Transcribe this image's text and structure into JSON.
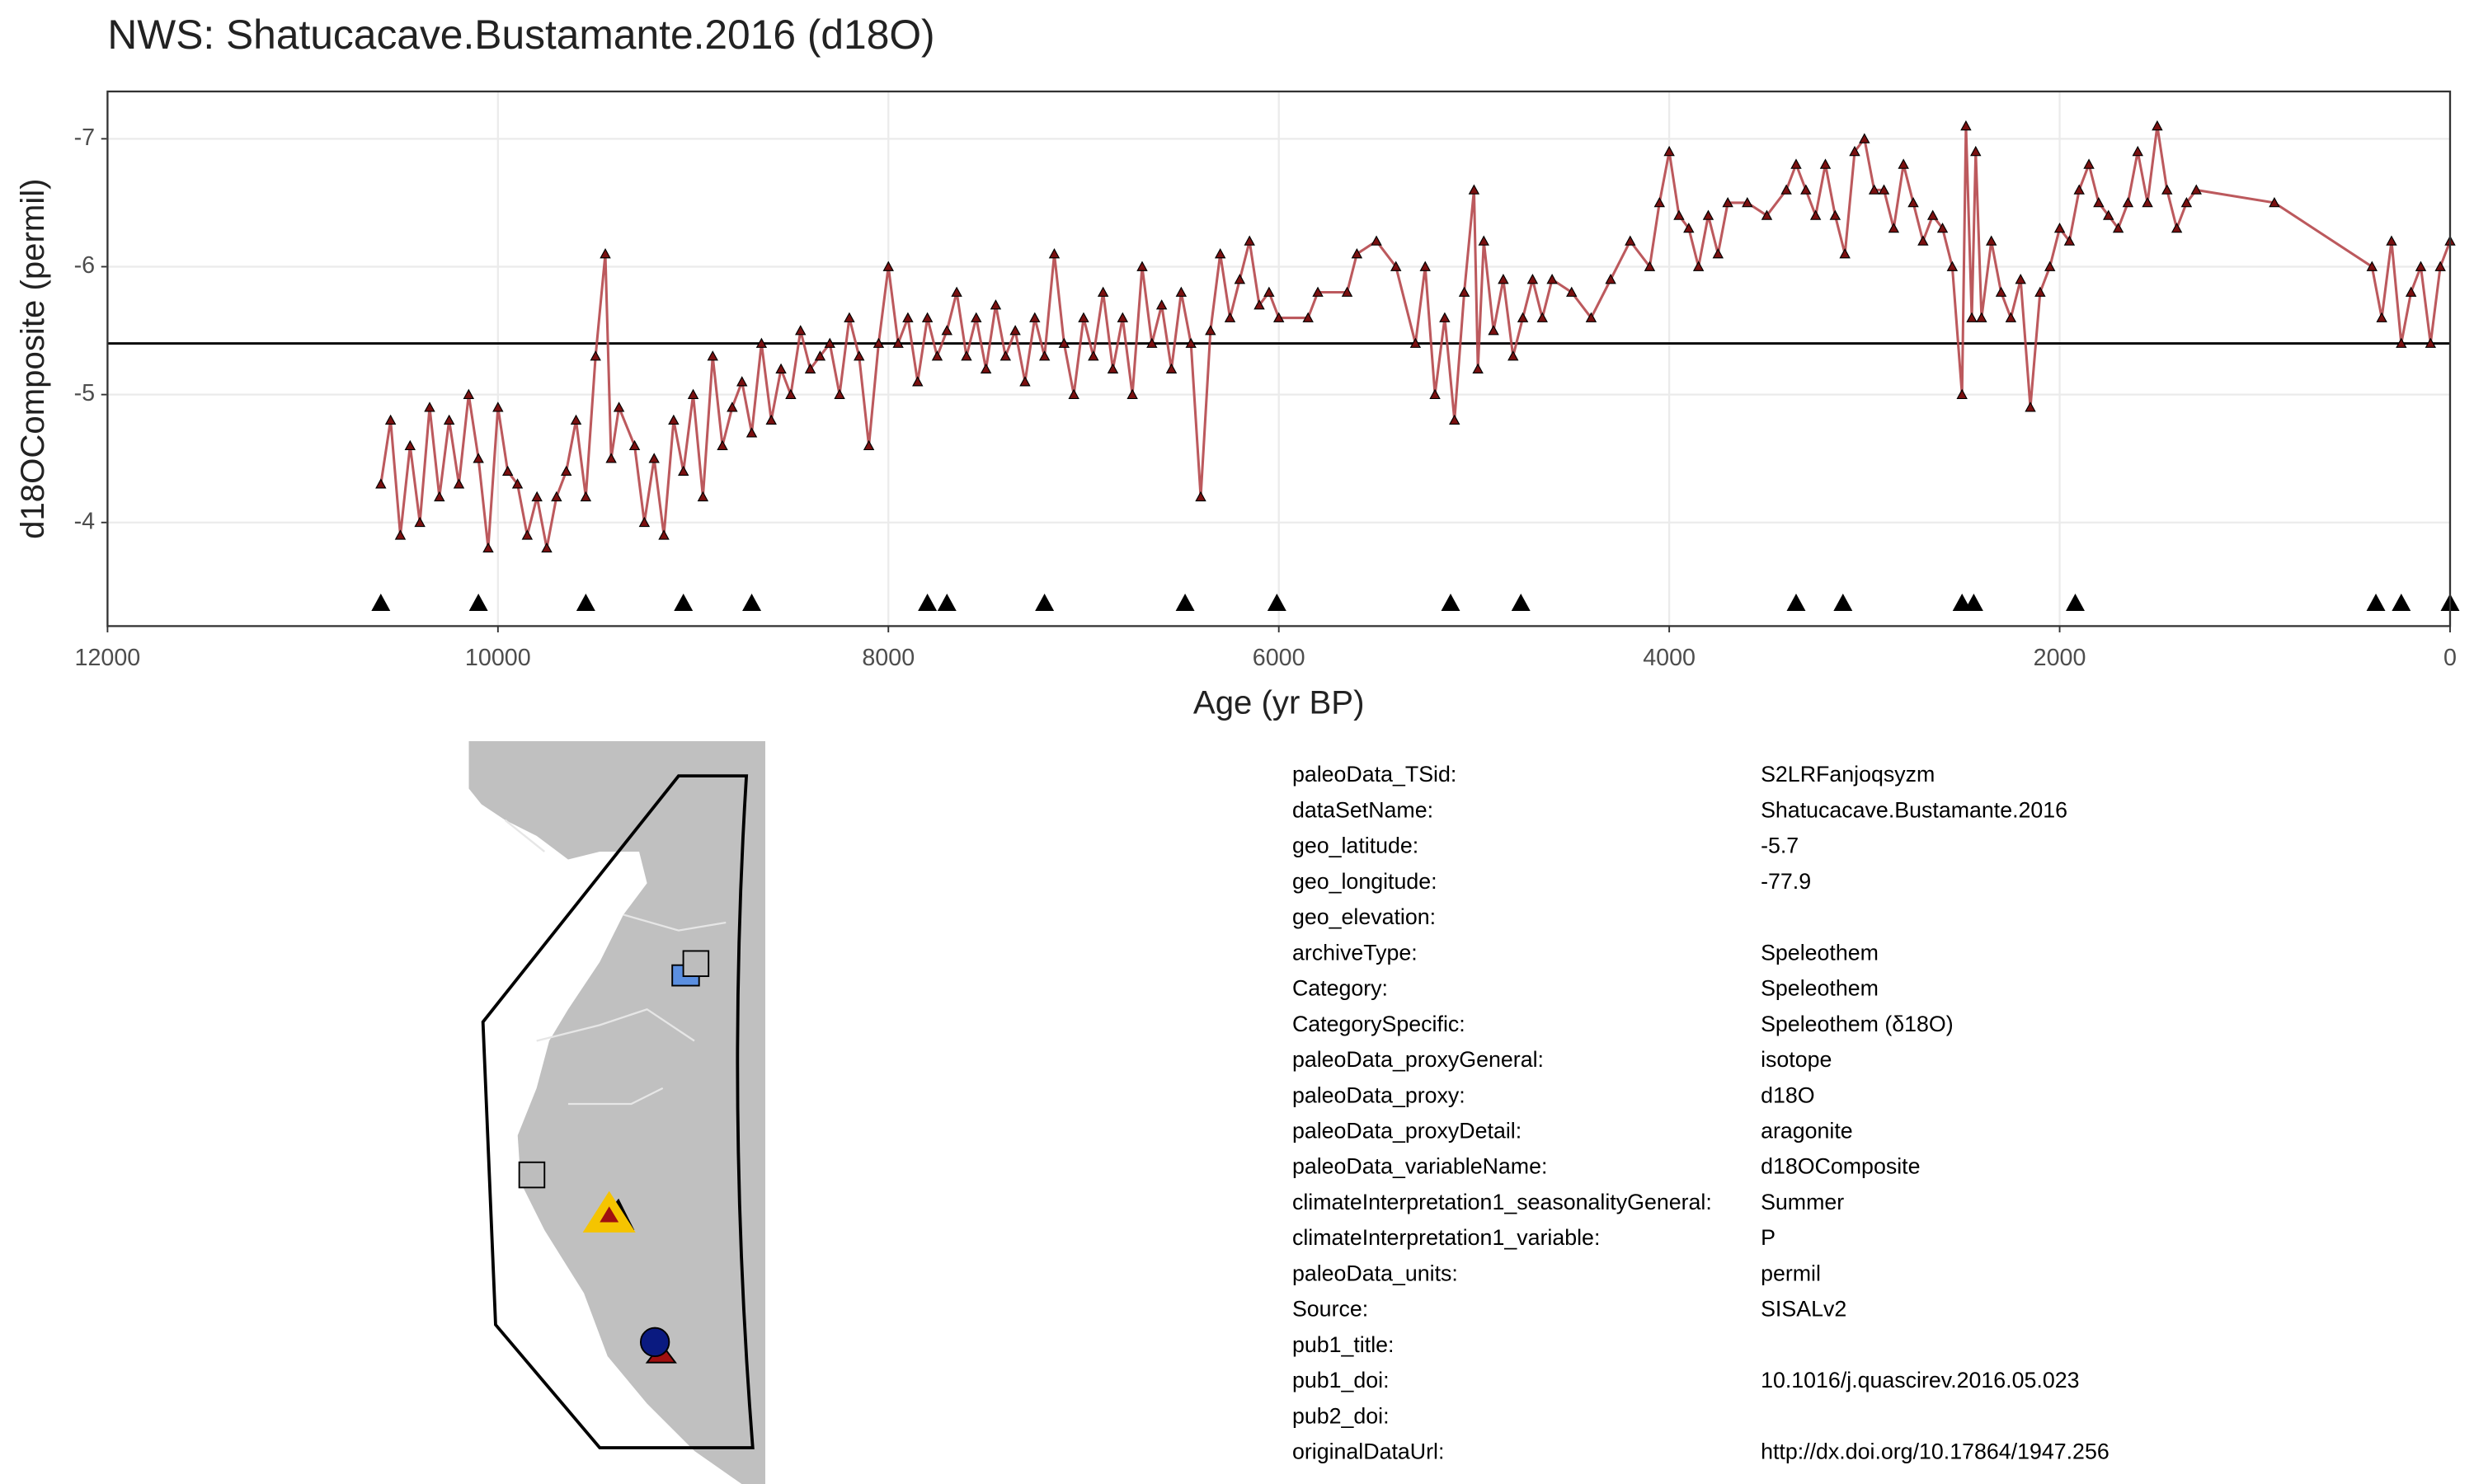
{
  "chart_data": {
    "type": "line",
    "title": "NWS: Shatucacave.Bustamante.2016 (d18O)",
    "xlabel": "Age (yr BP)",
    "ylabel": "d18OComposite (permil)",
    "x": [
      10600,
      10550,
      10500,
      10450,
      10400,
      10350,
      10300,
      10250,
      10200,
      10150,
      10100,
      10050,
      10000,
      9950,
      9900,
      9850,
      9800,
      9750,
      9700,
      9650,
      9600,
      9550,
      9500,
      9450,
      9420,
      9380,
      9300,
      9250,
      9200,
      9150,
      9100,
      9050,
      9000,
      8950,
      8900,
      8850,
      8800,
      8750,
      8700,
      8650,
      8600,
      8550,
      8500,
      8450,
      8400,
      8350,
      8300,
      8250,
      8200,
      8150,
      8100,
      8050,
      8000,
      7950,
      7900,
      7850,
      7800,
      7750,
      7700,
      7650,
      7600,
      7550,
      7500,
      7450,
      7400,
      7350,
      7300,
      7250,
      7200,
      7150,
      7100,
      7050,
      7000,
      6950,
      6900,
      6850,
      6800,
      6750,
      6700,
      6650,
      6600,
      6550,
      6500,
      6450,
      6400,
      6350,
      6300,
      6250,
      6200,
      6150,
      6100,
      6050,
      6000,
      5850,
      5800,
      5650,
      5600,
      5500,
      5400,
      5300,
      5250,
      5200,
      5150,
      5100,
      5050,
      5000,
      4980,
      4950,
      4900,
      4850,
      4800,
      4750,
      4700,
      4650,
      4600,
      4500,
      4400,
      4300,
      4200,
      4100,
      4050,
      4000,
      3950,
      3900,
      3850,
      3800,
      3750,
      3700,
      3600,
      3500,
      3400,
      3350,
      3300,
      3250,
      3200,
      3150,
      3100,
      3050,
      3000,
      2950,
      2900,
      2850,
      2800,
      2750,
      2700,
      2650,
      2600,
      2550,
      2500,
      2480,
      2450,
      2430,
      2400,
      2350,
      2300,
      2250,
      2200,
      2150,
      2100,
      2050,
      2000,
      1950,
      1900,
      1850,
      1800,
      1750,
      1700,
      1650,
      1600,
      1550,
      1500,
      1450,
      1400,
      1350,
      1300,
      900,
      400,
      350,
      300,
      250,
      200,
      150,
      100,
      50,
      0
    ],
    "values": [
      -4.3,
      -4.8,
      -3.9,
      -4.6,
      -4.0,
      -4.9,
      -4.2,
      -4.8,
      -4.3,
      -5.0,
      -4.5,
      -3.8,
      -4.9,
      -4.4,
      -4.3,
      -3.9,
      -4.2,
      -3.8,
      -4.2,
      -4.4,
      -4.8,
      -4.2,
      -5.3,
      -6.1,
      -4.5,
      -4.9,
      -4.6,
      -4.0,
      -4.5,
      -3.9,
      -4.8,
      -4.4,
      -5.0,
      -4.2,
      -5.3,
      -4.6,
      -4.9,
      -5.1,
      -4.7,
      -5.4,
      -4.8,
      -5.2,
      -5.0,
      -5.5,
      -5.2,
      -5.3,
      -5.4,
      -5.0,
      -5.6,
      -5.3,
      -4.6,
      -5.4,
      -6.0,
      -5.4,
      -5.6,
      -5.1,
      -5.6,
      -5.3,
      -5.5,
      -5.8,
      -5.3,
      -5.6,
      -5.2,
      -5.7,
      -5.3,
      -5.5,
      -5.1,
      -5.6,
      -5.3,
      -6.1,
      -5.4,
      -5.0,
      -5.6,
      -5.3,
      -5.8,
      -5.2,
      -5.6,
      -5.0,
      -6.0,
      -5.4,
      -5.7,
      -5.2,
      -5.8,
      -5.4,
      -4.2,
      -5.5,
      -6.1,
      -5.6,
      -5.9,
      -6.2,
      -5.7,
      -5.8,
      -5.6,
      -5.6,
      -5.8,
      -5.8,
      -6.1,
      -6.2,
      -6.0,
      -5.4,
      -6.0,
      -5.0,
      -5.6,
      -4.8,
      -5.8,
      -6.6,
      -5.2,
      -6.2,
      -5.5,
      -5.9,
      -5.3,
      -5.6,
      -5.9,
      -5.6,
      -5.9,
      -5.8,
      -5.6,
      -5.9,
      -6.2,
      -6.0,
      -6.5,
      -6.9,
      -6.4,
      -6.3,
      -6.0,
      -6.4,
      -6.1,
      -6.5,
      -6.5,
      -6.4,
      -6.6,
      -6.8,
      -6.6,
      -6.4,
      -6.8,
      -6.4,
      -6.1,
      -6.9,
      -7.0,
      -6.6,
      -6.6,
      -6.3,
      -6.8,
      -6.5,
      -6.2,
      -6.4,
      -6.3,
      -6.0,
      -5.0,
      -7.1,
      -5.6,
      -6.9,
      -5.6,
      -6.2,
      -5.8,
      -5.6,
      -5.9,
      -4.9,
      -5.8,
      -6.0,
      -6.3,
      -6.2,
      -6.6,
      -6.8,
      -6.5,
      -6.4,
      -6.3,
      -6.5,
      -6.9,
      -6.5,
      -7.1,
      -6.6,
      -6.3,
      -6.5,
      -6.6,
      -6.5,
      -6.0,
      -5.6,
      -6.2,
      -5.4,
      -5.8,
      -6.0,
      -5.4,
      -6.0,
      -6.2
    ],
    "color": "#b5474b",
    "marker_color": "#7a1010",
    "xlim": [
      12000,
      0
    ],
    "ylim": [
      -3.19,
      -7.37
    ],
    "xticks": [
      12000,
      10000,
      8000,
      6000,
      4000,
      2000,
      0
    ],
    "yticks": [
      -7,
      -6,
      -5,
      -4
    ],
    "grid": true,
    "reference_line": -5.4,
    "control_points": {
      "x": [
        10600,
        10100,
        9550,
        9050,
        8700,
        7800,
        7700,
        7200,
        6480,
        6010,
        5120,
        4760,
        3350,
        3110,
        2500,
        2440,
        1920,
        380,
        250,
        0
      ],
      "values": [
        -3.37,
        -3.37,
        -3.37,
        -3.37,
        -3.37,
        -3.37,
        -3.37,
        -3.37,
        -3.37,
        -3.37,
        -3.37,
        -3.37,
        -3.37,
        -3.37,
        -3.37,
        -3.37,
        -3.37,
        -3.37,
        -3.37,
        -3.37
      ],
      "color": "#000000"
    }
  },
  "metadata": {
    "rows": [
      [
        "paleoData_TSid:",
        "S2LRFanjoqsyzm"
      ],
      [
        "dataSetName:",
        "Shatucacave.Bustamante.2016"
      ],
      [
        "geo_latitude:",
        "-5.7"
      ],
      [
        "geo_longitude:",
        "-77.9"
      ],
      [
        "geo_elevation:"
      ],
      [
        "archiveType:",
        "Speleothem"
      ],
      [
        "Category:",
        "Speleothem"
      ],
      [
        "CategorySpecific:",
        "Speleothem (δ18O)"
      ],
      [
        "paleoData_proxyGeneral:",
        "isotope"
      ],
      [
        "paleoData_proxy:",
        "d18O"
      ],
      [
        "paleoData_proxyDetail:",
        "aragonite"
      ],
      [
        "paleoData_variableName:",
        "d18OComposite"
      ],
      [
        "climateInterpretation1_seasonalityGeneral:",
        "Summer"
      ],
      [
        "climateInterpretation1_variable:",
        "P"
      ],
      [
        "paleoData_units:",
        "permil"
      ],
      [
        "Source:",
        "SISALv2"
      ],
      [
        "pub1_title:"
      ],
      [
        "pub1_doi:",
        "10.1016/j.quascirev.2016.05.023"
      ],
      [
        "pub2_doi:"
      ],
      [
        "originalDataUrl:",
        "http://dx.doi.org/10.17864/1947.256"
      ]
    ]
  }
}
